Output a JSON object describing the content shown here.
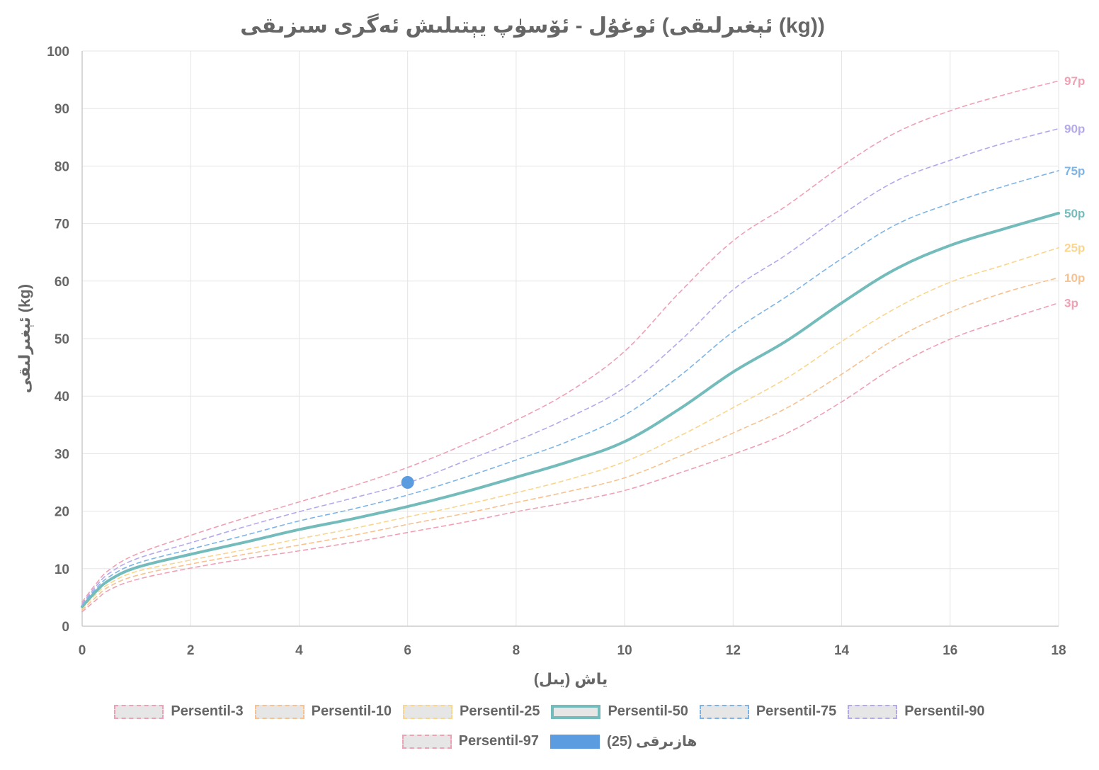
{
  "chart_data": {
    "type": "line",
    "title": "ئوغۇل - ئۆسۈپ يېتىلىش ئەگرى سىزىقى (ئېغىرلىقى (kg))",
    "xlabel": "ياش (يىل)",
    "ylabel": "ئېغىرلىقى (kg)",
    "xlim": [
      0,
      18
    ],
    "ylim": [
      0,
      100
    ],
    "xticks": [
      "0",
      "2",
      "4",
      "6",
      "8",
      "10",
      "12",
      "14",
      "16",
      "18"
    ],
    "yticks": [
      "0",
      "10",
      "20",
      "30",
      "40",
      "50",
      "60",
      "70",
      "80",
      "90",
      "100"
    ],
    "grid": true,
    "legend_position": "bottom",
    "x": [
      0,
      0.25,
      0.5,
      1,
      2,
      3,
      4,
      5,
      6,
      7,
      8,
      9,
      10,
      11,
      12,
      13,
      14,
      15,
      16,
      17,
      18
    ],
    "series": [
      {
        "name": "Persentil-3",
        "end_label": "3p",
        "color": "#f0a0b4",
        "style": "dashed",
        "values": [
          2.5,
          4.5,
          6.3,
          8.1,
          10.1,
          11.7,
          13.1,
          14.6,
          16.3,
          18.0,
          19.9,
          21.6,
          23.6,
          26.6,
          29.9,
          33.6,
          39.0,
          45.2,
          49.9,
          53.2,
          56.2
        ]
      },
      {
        "name": "Persentil-10",
        "end_label": "10p",
        "color": "#f7c290",
        "style": "dashed",
        "values": [
          2.8,
          5.0,
          6.9,
          8.8,
          10.8,
          12.5,
          14.1,
          15.8,
          17.7,
          19.5,
          21.5,
          23.5,
          25.8,
          29.5,
          33.6,
          38.0,
          43.8,
          50.0,
          54.6,
          58.0,
          60.6
        ]
      },
      {
        "name": "Persentil-25",
        "end_label": "25p",
        "color": "#fad68c",
        "style": "dashed",
        "values": [
          3.1,
          5.5,
          7.4,
          9.5,
          11.5,
          13.3,
          15.2,
          17.0,
          19.0,
          21.0,
          23.2,
          25.6,
          28.6,
          33.0,
          38.0,
          43.2,
          49.5,
          55.3,
          59.8,
          62.8,
          65.8
        ]
      },
      {
        "name": "Persentil-50",
        "end_label": "50p",
        "color": "#74bcbc",
        "style": "solid",
        "values": [
          3.4,
          6.0,
          8.0,
          10.2,
          12.5,
          14.6,
          16.8,
          18.7,
          20.8,
          23.2,
          25.9,
          28.7,
          32.1,
          37.7,
          44.2,
          49.7,
          56.2,
          62.1,
          66.2,
          69.1,
          71.8
        ]
      },
      {
        "name": "Persentil-75",
        "end_label": "75p",
        "color": "#7db4e8",
        "style": "dashed",
        "values": [
          3.7,
          6.5,
          8.6,
          10.9,
          13.4,
          15.8,
          18.3,
          20.4,
          22.8,
          25.7,
          28.9,
          32.3,
          36.7,
          43.4,
          51.2,
          57.4,
          63.9,
          69.8,
          73.5,
          76.5,
          79.2
        ]
      },
      {
        "name": "Persentil-90",
        "end_label": "90p",
        "color": "#b4a8ee",
        "style": "dashed",
        "values": [
          3.9,
          6.9,
          9.2,
          11.7,
          14.5,
          17.3,
          19.9,
          22.3,
          24.9,
          28.5,
          32.2,
          36.4,
          41.5,
          49.4,
          58.5,
          64.7,
          71.5,
          77.4,
          81.0,
          84.0,
          86.5
        ]
      },
      {
        "name": "Persentil-97",
        "end_label": "97p",
        "color": "#f0a0b4",
        "style": "dashed",
        "values": [
          4.2,
          7.3,
          9.8,
          12.5,
          15.8,
          18.8,
          21.6,
          24.4,
          27.6,
          31.4,
          35.8,
          40.9,
          47.8,
          57.9,
          67.0,
          73.2,
          80.0,
          85.8,
          89.6,
          92.4,
          94.8
        ]
      }
    ],
    "point": {
      "name": "هازىرقى (25)",
      "x": 6,
      "y": 25,
      "color": "#5b9be0"
    }
  }
}
